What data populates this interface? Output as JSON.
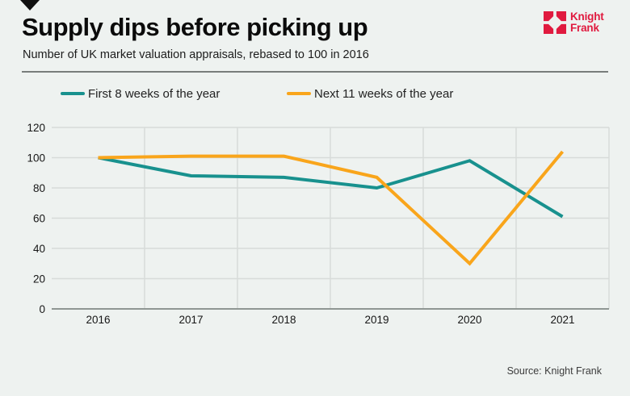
{
  "header": {
    "title": "Supply dips before picking up",
    "subtitle": "Number of UK market valuation appraisals, rebased to 100 in 2016",
    "logo": {
      "brand_line1": "Knight",
      "brand_line2": "Frank",
      "brand_color": "#e01a3f"
    }
  },
  "legend": [
    {
      "label": "First 8 weeks of the year",
      "color": "#18918e"
    },
    {
      "label": "Next 11 weeks of the year",
      "color": "#f9a51b"
    }
  ],
  "footer": {
    "source": "Source: Knight Frank"
  },
  "chart_data": {
    "type": "line",
    "title": "Supply dips before picking up",
    "subtitle": "Number of UK market valuation appraisals, rebased to 100 in 2016",
    "categories": [
      "2016",
      "2017",
      "2018",
      "2019",
      "2020",
      "2021"
    ],
    "series": [
      {
        "name": "First 8 weeks of the year",
        "color": "#18918e",
        "values": [
          100,
          88,
          87,
          80,
          98,
          61
        ]
      },
      {
        "name": "Next 11 weeks of the year",
        "color": "#f9a51b",
        "values": [
          100,
          101,
          101,
          87,
          30,
          104
        ]
      }
    ],
    "xlabel": "",
    "ylabel": "",
    "ylim": [
      0,
      120
    ],
    "yticks": [
      0,
      20,
      40,
      60,
      80,
      100,
      120
    ],
    "grid": true,
    "legend_position": "top",
    "colors": {
      "grid_line": "#d7dbd9",
      "axis_line": "#8f9693",
      "tick_text": "#161616",
      "background": "#eef2f0"
    }
  }
}
